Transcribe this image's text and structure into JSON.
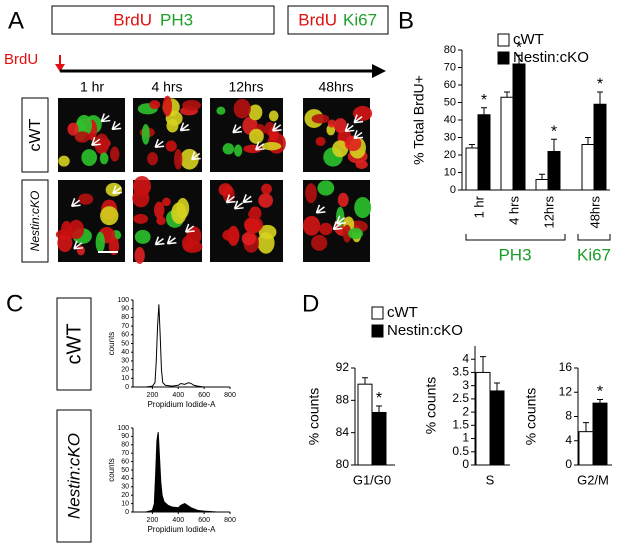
{
  "panels": {
    "A": {
      "letter": "A",
      "box1": [
        "BrdU",
        "PH3"
      ],
      "box2": [
        "BrdU",
        "Ki67"
      ],
      "pulse": "BrdU",
      "times": [
        "1 hr",
        "4 hrs",
        "12hrs",
        "48hrs"
      ],
      "rows": [
        "cWT",
        "Nestin:cKO"
      ]
    },
    "B": {
      "letter": "B"
    },
    "C": {
      "letter": "C",
      "rows": [
        "cWT",
        "Nestin:cKO"
      ]
    },
    "D": {
      "letter": "D"
    }
  },
  "chart_data": [
    {
      "type": "bar",
      "ylabel": "% Total BrdU+",
      "categories": [
        "1 hr",
        "4 hrs",
        "12hrs",
        "48hrs"
      ],
      "ylim": [
        0,
        80
      ],
      "yticks": [
        0,
        10,
        20,
        30,
        40,
        50,
        60,
        70,
        80
      ],
      "series": [
        {
          "name": "cWT",
          "color": "#ffffff",
          "values": [
            24,
            53,
            6,
            26
          ],
          "errors": [
            2,
            3,
            3,
            4
          ]
        },
        {
          "name": "Nestin:cKO",
          "color": "#000000",
          "values": [
            43,
            72,
            22,
            49
          ],
          "errors": [
            4,
            5,
            7,
            7
          ],
          "significance": [
            "*",
            "*",
            "*",
            "*"
          ]
        }
      ],
      "group_labels": [
        "PH3",
        "Ki67"
      ],
      "group_color": "#1a9e2a"
    },
    {
      "type": "area",
      "filled": false,
      "xlabel": "Propidium Iodide-A",
      "ylabel": "counts",
      "x": [
        100,
        150,
        200,
        220,
        230,
        240,
        250,
        260,
        270,
        280,
        300,
        350,
        400,
        420,
        450,
        480,
        500,
        520,
        550,
        600,
        700,
        800
      ],
      "values": [
        0,
        0,
        1,
        5,
        30,
        70,
        95,
        60,
        20,
        5,
        2,
        1,
        2,
        4,
        3,
        5,
        4,
        2,
        1,
        0,
        0,
        0
      ],
      "xlim": [
        50,
        800
      ],
      "xticks": [
        200,
        400,
        600,
        800
      ],
      "ylim": [
        0,
        100
      ],
      "yticks": [
        0,
        10,
        20,
        30,
        40,
        50,
        60,
        70,
        80,
        90,
        100
      ]
    },
    {
      "type": "area",
      "filled": true,
      "xlabel": "Propidium Iodide-A",
      "ylabel": "counts",
      "x": [
        100,
        150,
        200,
        215,
        225,
        235,
        245,
        255,
        265,
        275,
        290,
        320,
        350,
        400,
        420,
        450,
        480,
        500,
        550,
        600,
        700,
        800
      ],
      "values": [
        0,
        0,
        2,
        10,
        45,
        85,
        95,
        65,
        35,
        20,
        12,
        8,
        6,
        5,
        8,
        10,
        7,
        5,
        2,
        1,
        0,
        0
      ],
      "xlim": [
        50,
        800
      ],
      "xticks": [
        200,
        400,
        600,
        800
      ],
      "ylim": [
        0,
        100
      ],
      "yticks": [
        0,
        10,
        20,
        30,
        40,
        50,
        60,
        70,
        80,
        90,
        100
      ]
    },
    {
      "type": "bar",
      "ylabel": "% counts",
      "categories": [
        "G1/G0"
      ],
      "ylim": [
        80,
        92
      ],
      "yticks": [
        80,
        84,
        88,
        92
      ],
      "series": [
        {
          "name": "cWT",
          "color": "#ffffff",
          "values": [
            90
          ],
          "errors": [
            0.8
          ]
        },
        {
          "name": "Nestin:cKO",
          "color": "#000000",
          "values": [
            86.5
          ],
          "errors": [
            0.8
          ],
          "significance": [
            "*"
          ]
        }
      ]
    },
    {
      "type": "bar",
      "ylabel": "% counts",
      "categories": [
        "S"
      ],
      "ylim": [
        0,
        4.5
      ],
      "yticks": [
        0,
        0.5,
        1,
        1.5,
        2,
        2.5,
        3,
        3.5,
        4
      ],
      "series": [
        {
          "color": "#ffffff",
          "values": [
            3.5
          ],
          "errors": [
            0.6
          ]
        },
        {
          "color": "#000000",
          "values": [
            2.8
          ],
          "errors": [
            0.3
          ]
        }
      ]
    },
    {
      "type": "bar",
      "ylabel": "% counts",
      "categories": [
        "G2/M"
      ],
      "ylim": [
        0,
        16
      ],
      "yticks": [
        0,
        4,
        8,
        12,
        16
      ],
      "series": [
        {
          "color": "#ffffff",
          "values": [
            5.5
          ],
          "errors": [
            1.5
          ]
        },
        {
          "color": "#000000",
          "values": [
            10.2
          ],
          "errors": [
            0.6
          ],
          "significance": [
            "*"
          ]
        }
      ]
    }
  ]
}
